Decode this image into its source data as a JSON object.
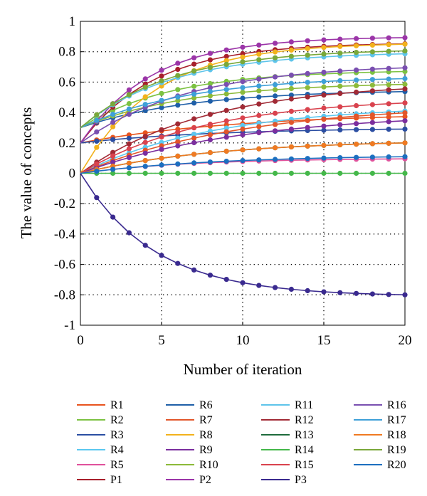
{
  "chart_data": {
    "type": "line",
    "title": "",
    "xlabel": "Number of iteration",
    "ylabel": "The value of concepts",
    "xlim": [
      0,
      20
    ],
    "ylim": [
      -1,
      1
    ],
    "x_ticks": [
      "0",
      "5",
      "10",
      "15",
      "20"
    ],
    "y_ticks": [
      "1",
      "0.8",
      "0.6",
      "0.4",
      "0.2",
      "0",
      "-0.2",
      "-0.4",
      "-0.6",
      "-0.8",
      "-1"
    ],
    "grid": "dotted",
    "legend_position": "bottom",
    "legend_columns": 4,
    "x": [
      0,
      1,
      2,
      3,
      4,
      5,
      6,
      7,
      8,
      9,
      10,
      11,
      12,
      13,
      14,
      15,
      16,
      17,
      18,
      19,
      20
    ],
    "series": [
      {
        "name": "R1",
        "color": "#e8541e",
        "start": 0.2,
        "end": 0.4,
        "rate": 0.1
      },
      {
        "name": "R2",
        "color": "#7cc242",
        "start": 0.3,
        "end": 0.68,
        "rate": 0.18
      },
      {
        "name": "R3",
        "color": "#2b4ea2",
        "start": 0.2,
        "end": 0.3,
        "rate": 0.12
      },
      {
        "name": "R4",
        "color": "#5bc8f0",
        "start": 0.0,
        "end": 0.45,
        "rate": 0.12
      },
      {
        "name": "R5",
        "color": "#e0529c",
        "start": 0.0,
        "end": 0.1,
        "rate": 0.15
      },
      {
        "name": "P1",
        "color": "#a8202c",
        "start": 0.2,
        "end": 0.86,
        "rate": 0.22
      },
      {
        "name": "R6",
        "color": "#1f5fa8",
        "start": 0.3,
        "end": 0.55,
        "rate": 0.15
      },
      {
        "name": "R7",
        "color": "#e2562a",
        "start": 0.0,
        "end": 0.46,
        "rate": 0.1
      },
      {
        "name": "R8",
        "color": "#f2b21c",
        "start": 0.0,
        "end": 0.86,
        "rate": 0.22
      },
      {
        "name": "R9",
        "color": "#7b2e9e",
        "start": 0.0,
        "end": 0.4,
        "rate": 0.1
      },
      {
        "name": "R10",
        "color": "#8cba3a",
        "start": 0.3,
        "end": 0.6,
        "rate": 0.15
      },
      {
        "name": "P2",
        "color": "#9b35a8",
        "start": 0.2,
        "end": 0.9,
        "rate": 0.23
      },
      {
        "name": "R11",
        "color": "#5ec4ea",
        "start": 0.3,
        "end": 0.8,
        "rate": 0.18
      },
      {
        "name": "R12",
        "color": "#a12a35",
        "start": 0.0,
        "end": 0.6,
        "rate": 0.13
      },
      {
        "name": "R13",
        "color": "#1e6b3c",
        "start": 0.0,
        "end": 0.22,
        "rate": 0.12
      },
      {
        "name": "R14",
        "color": "#44b84a",
        "start": 0.0,
        "end": 0.0,
        "rate": 0.15
      },
      {
        "name": "R15",
        "color": "#d9434e",
        "start": 0.0,
        "end": 0.5,
        "rate": 0.13
      },
      {
        "name": "P3",
        "color": "#3a2a8f",
        "start": 0.0,
        "end": -0.81,
        "rate": 0.22
      },
      {
        "name": "R16",
        "color": "#7a4fb0",
        "start": 0.2,
        "end": 0.72,
        "rate": 0.15
      },
      {
        "name": "R17",
        "color": "#3ea0d8",
        "start": 0.3,
        "end": 0.64,
        "rate": 0.15
      },
      {
        "name": "R18",
        "color": "#f07a22",
        "start": 0.0,
        "end": 0.22,
        "rate": 0.12
      },
      {
        "name": "R19",
        "color": "#7aa83a",
        "start": 0.3,
        "end": 0.82,
        "rate": 0.18
      },
      {
        "name": "R20",
        "color": "#1c6fc0",
        "start": 0.0,
        "end": 0.12,
        "rate": 0.12
      }
    ]
  }
}
